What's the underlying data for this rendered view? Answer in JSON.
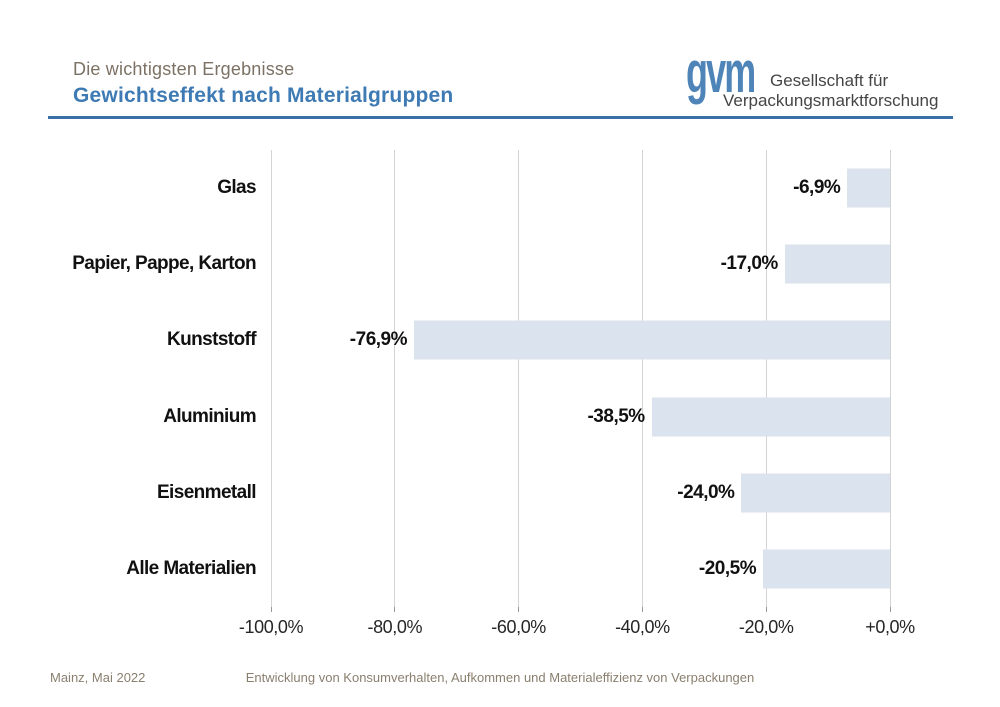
{
  "header": {
    "kicker": "Die wichtigsten Ergebnisse",
    "title": "Gewichtseffekt nach Materialgruppen"
  },
  "logo": {
    "mark": "gvm",
    "line1": "Gesellschaft für",
    "line2": "Verpackungsmarktforschung"
  },
  "chart_data": {
    "type": "bar",
    "orientation": "horizontal",
    "title": "Gewichtseffekt nach Materialgruppen",
    "xlabel": "",
    "ylabel": "",
    "categories": [
      "Glas",
      "Papier, Pappe, Karton",
      "Kunststoff",
      "Aluminium",
      "Eisenmetall",
      "Alle Materialien"
    ],
    "values": [
      -6.9,
      -17.0,
      -76.9,
      -38.5,
      -24.0,
      -20.5
    ],
    "value_labels": [
      "-6,9%",
      "-17,0%",
      "-76,9%",
      "-38,5%",
      "-24,0%",
      "-20,5%"
    ],
    "xlim": [
      -100,
      0
    ],
    "x_ticks": [
      -100,
      -80,
      -60,
      -40,
      -20,
      0
    ],
    "x_tick_labels": [
      "-100,0%",
      "-80,0%",
      "-60,0%",
      "-40,0%",
      "-20,0%",
      "+0,0%"
    ],
    "grid": true,
    "legend": false,
    "bar_color": "#dbe3ee",
    "gridline_color": "#d4d4d4"
  },
  "footer": {
    "left": "Mainz, Mai 2022",
    "center": "Entwicklung von Konsumverhalten, Aufkommen und Materialeffizienz von Verpackungen"
  },
  "colors": {
    "title_blue": "#3e7ab3",
    "rule_blue": "#3a70a6",
    "kicker_brown": "#7c7164",
    "logo_blue": "#4e84b8",
    "logo_text_gray": "#454545",
    "footer_brown": "#8a7f6f",
    "label_black": "#111111"
  }
}
